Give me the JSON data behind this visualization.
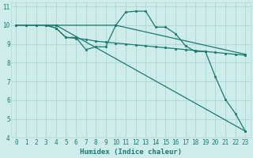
{
  "xlabel": "Humidex (Indice chaleur)",
  "ylabel": "",
  "xlim": [
    -0.5,
    23.5
  ],
  "ylim": [
    4,
    11.2
  ],
  "xticks": [
    0,
    1,
    2,
    3,
    4,
    5,
    6,
    7,
    8,
    9,
    10,
    11,
    12,
    13,
    14,
    15,
    16,
    17,
    18,
    19,
    20,
    21,
    22,
    23
  ],
  "yticks": [
    4,
    5,
    6,
    7,
    8,
    9,
    10,
    11
  ],
  "background_color": "#ceecea",
  "grid_color": "#b0d8d5",
  "line_color": "#1a7a6e",
  "series": [
    {
      "x": [
        0,
        1,
        2,
        3,
        4,
        10,
        23
      ],
      "y": [
        10,
        10,
        10,
        10,
        10,
        10,
        8.45
      ]
    },
    {
      "x": [
        3,
        4,
        5,
        6,
        7,
        8,
        9,
        10,
        11,
        12,
        13,
        14,
        15,
        16,
        17,
        18,
        19,
        20,
        21,
        22,
        23
      ],
      "y": [
        10,
        9.85,
        9.35,
        9.35,
        8.7,
        8.85,
        8.85,
        10.0,
        10.7,
        10.75,
        10.75,
        9.9,
        9.9,
        9.55,
        8.9,
        8.6,
        8.6,
        7.25,
        6.05,
        5.3,
        4.35
      ]
    },
    {
      "x": [
        3,
        4,
        5,
        6,
        7,
        8,
        9,
        10,
        11,
        12,
        13,
        14,
        15,
        16,
        17,
        18,
        19,
        20,
        21,
        22,
        23
      ],
      "y": [
        10,
        9.85,
        9.35,
        9.3,
        9.25,
        9.15,
        9.1,
        9.05,
        9.0,
        8.95,
        8.9,
        8.85,
        8.8,
        8.75,
        8.7,
        8.65,
        8.6,
        8.55,
        8.5,
        8.45,
        8.4
      ]
    },
    {
      "x": [
        0,
        1,
        2,
        3,
        4,
        23
      ],
      "y": [
        10,
        10,
        10,
        10,
        10,
        4.35
      ]
    }
  ]
}
